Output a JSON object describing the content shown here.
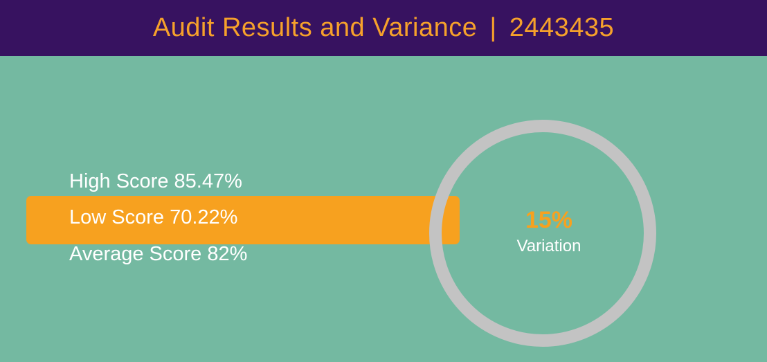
{
  "header": {
    "title": "Audit Results and Variance",
    "separator": "|",
    "audit_id": "2443435"
  },
  "scores": {
    "high": "High Score 85.47%",
    "low": "Low Score 70.22%",
    "average": "Average Score 82%",
    "highlighted": "low"
  },
  "variation": {
    "value": "15%",
    "label": "Variation"
  },
  "colors": {
    "header_bg": "#371260",
    "accent": "#f7a11f",
    "background": "#74b9a1",
    "ring": "#c3c3c3",
    "text": "#ffffff"
  }
}
